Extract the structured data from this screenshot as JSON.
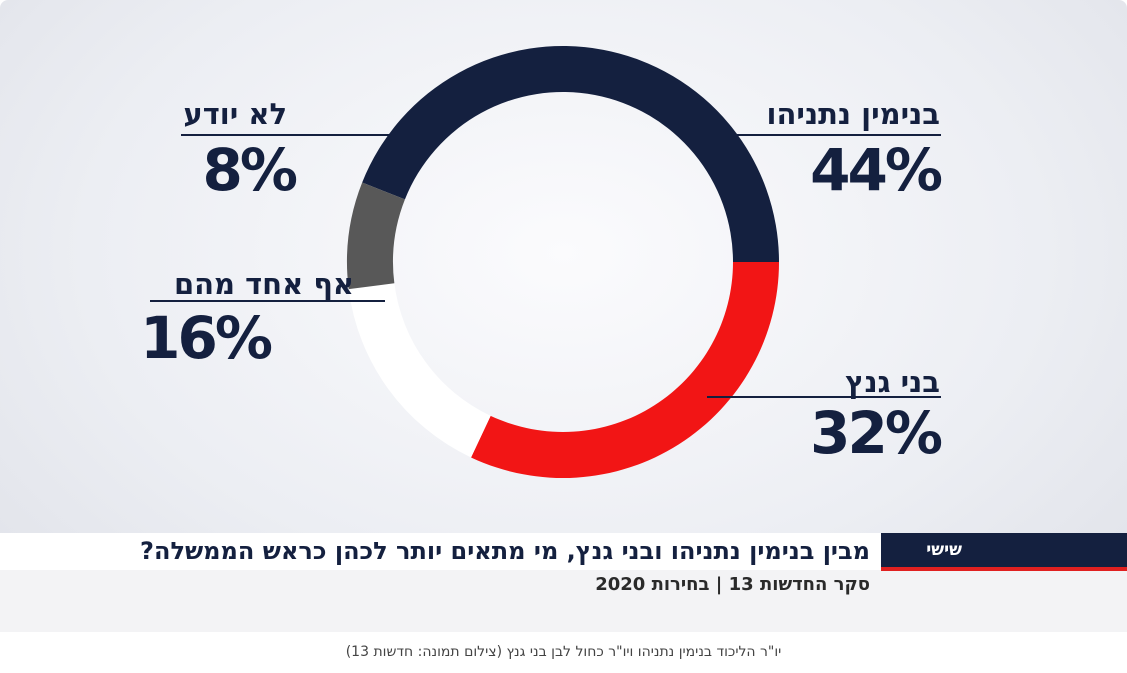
{
  "chart_data": {
    "type": "pie",
    "donut": true,
    "categories": [
      "בנימין נתניהו",
      "בני גנץ",
      "אף אחד מהם",
      "לא יודע"
    ],
    "values": [
      44,
      32,
      16,
      8
    ],
    "labels": [
      "44%",
      "32%",
      "16%",
      "8%"
    ],
    "colors": [
      "#14203f",
      "#f21515",
      "#ffffff",
      "#585858"
    ]
  },
  "lower_third": {
    "brand": "שישי",
    "headline": "מבין בנימין נתניהו ובני גנץ, מי מתאים יותר לכהן כראש הממשלה?",
    "subline": "סקר החדשות 13 | בחירות 2020",
    "brand_color": "#14203f",
    "accent_color": "#e02020"
  },
  "caption": "יו\"ר הליכוד בנימין נתניהו ויו\"ר כחול לבן בני גנץ (צילום תמונה: חדשות 13)"
}
